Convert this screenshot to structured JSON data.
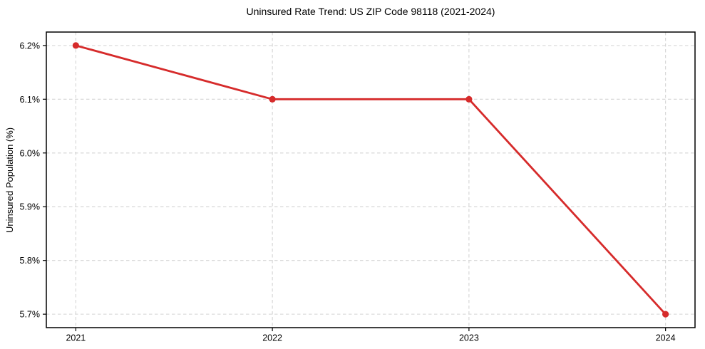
{
  "chart_data": {
    "type": "line",
    "title": "Uninsured Rate Trend: US ZIP Code 98118 (2021-2024)",
    "xlabel": "",
    "ylabel": "Uninsured Population (%)",
    "x": [
      2021,
      2022,
      2023,
      2024
    ],
    "values": [
      6.2,
      6.1,
      6.1,
      5.7
    ],
    "xticks": [
      2021,
      2022,
      2023,
      2024
    ],
    "xtick_labels": [
      "2021",
      "2022",
      "2023",
      "2024"
    ],
    "yticks": [
      5.7,
      5.8,
      5.9,
      6.0,
      6.1,
      6.2
    ],
    "ytick_labels": [
      "5.7%",
      "5.8%",
      "5.9%",
      "6.0%",
      "6.1%",
      "6.2%"
    ],
    "xlim": [
      2020.85,
      2024.15
    ],
    "ylim": [
      5.675,
      6.225
    ],
    "grid": true,
    "grid_style": "dashed",
    "legend": "none",
    "colors": {
      "line": "#d62b2b",
      "marker": "#d62b2b",
      "grid": "#d4d4d4",
      "spine": "#000000",
      "text": "#000000",
      "background": "#ffffff"
    }
  }
}
